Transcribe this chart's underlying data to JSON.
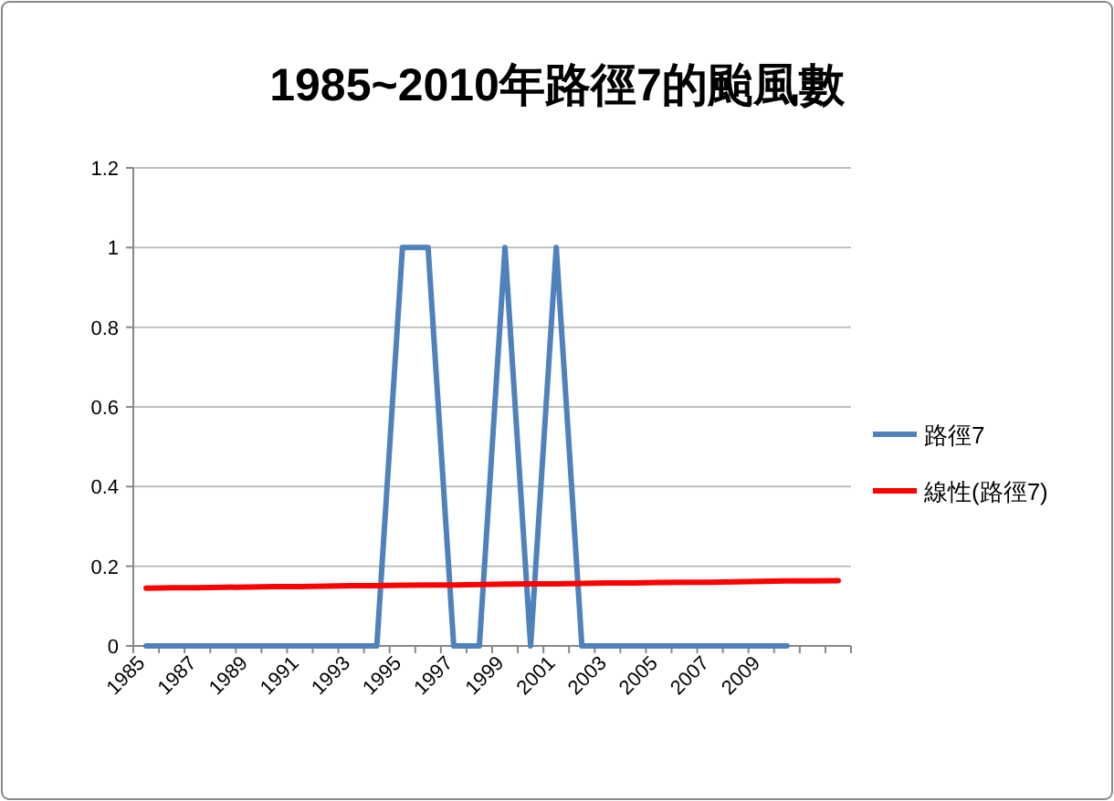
{
  "chart_data": {
    "type": "line",
    "title": "1985~2010年路徑7的颱風數",
    "categories": [
      "1985",
      null,
      "1987",
      null,
      "1989",
      null,
      "1991",
      null,
      "1993",
      null,
      "1995",
      null,
      "1997",
      null,
      "1999",
      null,
      "2001",
      null,
      "2003",
      null,
      "2005",
      null,
      "2007",
      null,
      "2009",
      null,
      null,
      null
    ],
    "series": [
      {
        "name": "路徑7",
        "color": "#4f81bd",
        "values": [
          0,
          0,
          0,
          0,
          0,
          0,
          0,
          0,
          0,
          0,
          1,
          1,
          0,
          0,
          1,
          0,
          1,
          0,
          0,
          0,
          0,
          0,
          0,
          0,
          0,
          0,
          null,
          null
        ]
      },
      {
        "name": "線性(路徑7)",
        "color": "#ff0000",
        "values": [
          0.145,
          0.146,
          0.146,
          0.147,
          0.148,
          0.149,
          0.149,
          0.15,
          0.151,
          0.151,
          0.152,
          0.153,
          0.153,
          0.154,
          0.155,
          0.156,
          0.156,
          0.157,
          0.158,
          0.158,
          0.159,
          0.16,
          0.16,
          0.161,
          0.162,
          0.163,
          0.163,
          0.164
        ]
      }
    ],
    "ylim": [
      0,
      1.2
    ],
    "yticks": [
      0,
      0.2,
      0.4,
      0.6,
      0.8,
      1,
      1.2
    ],
    "grid": "y",
    "legend": "right"
  }
}
